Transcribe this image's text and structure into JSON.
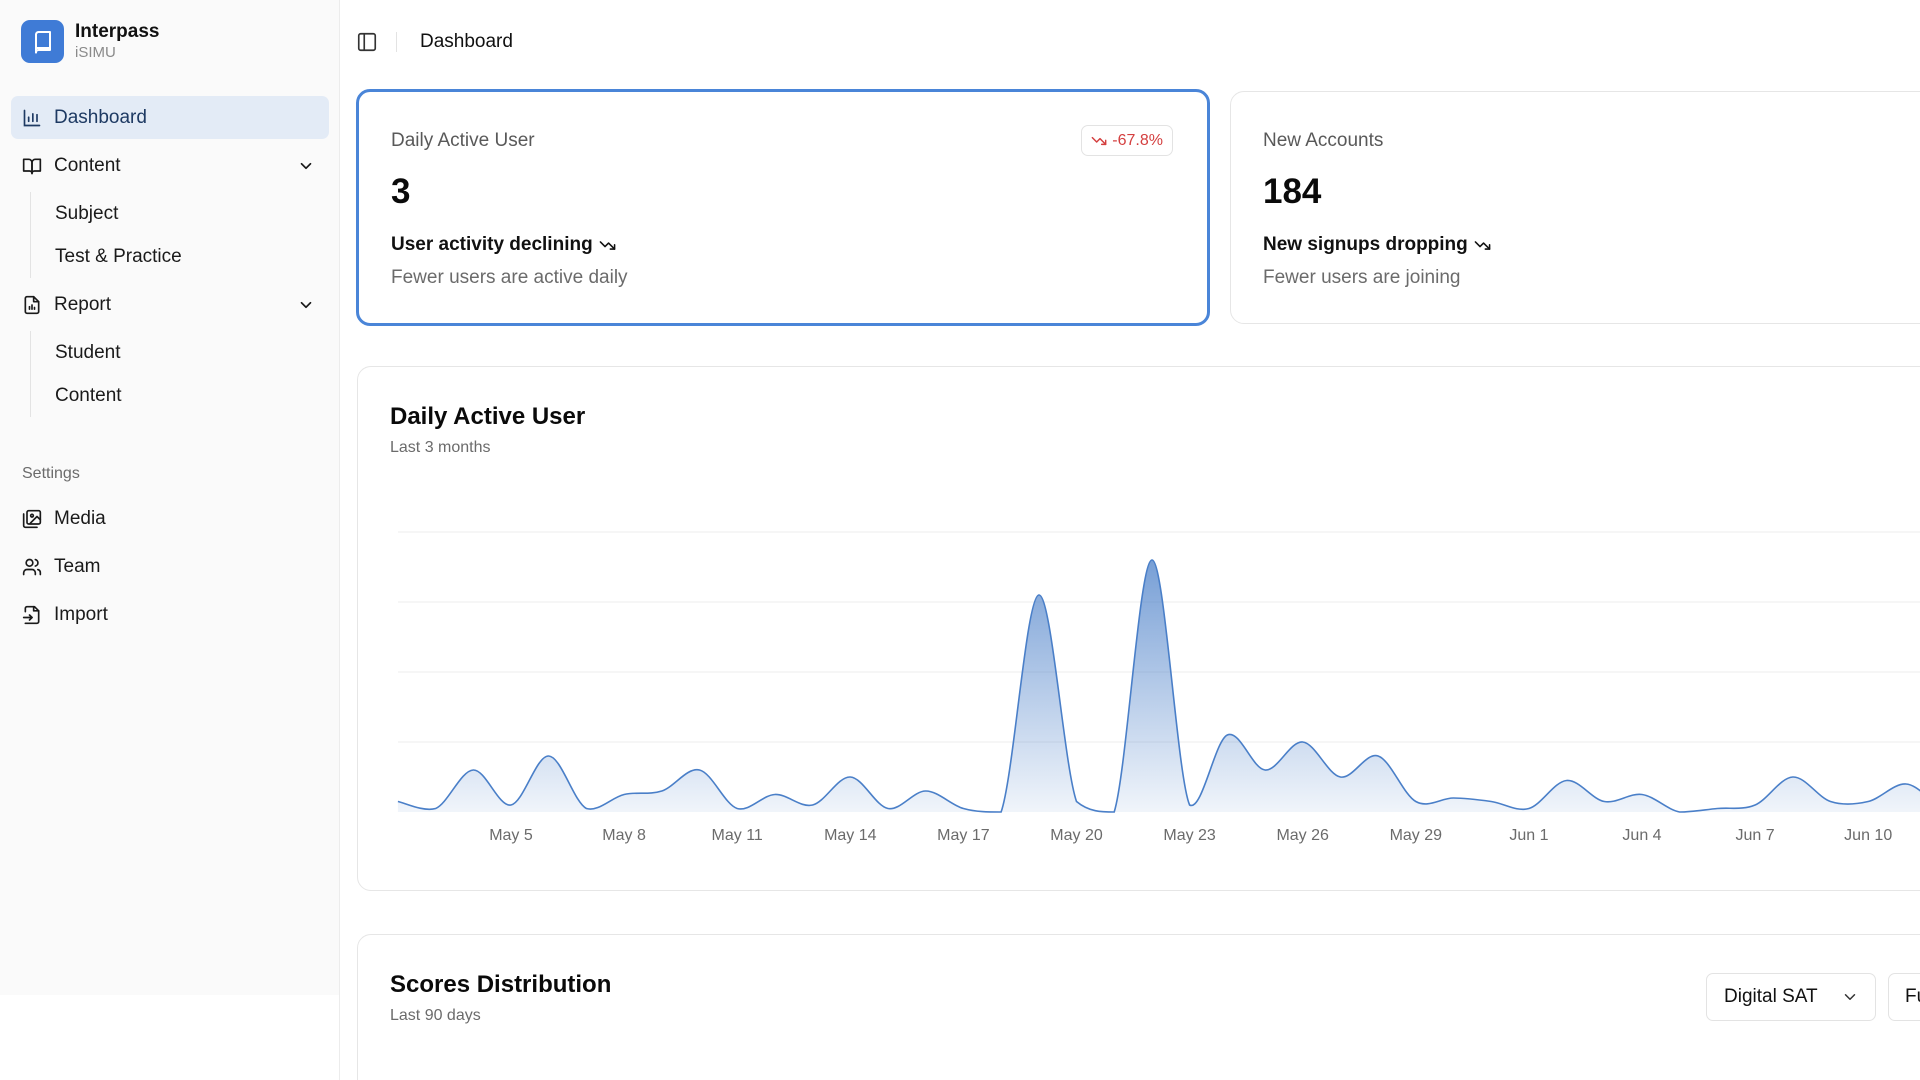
{
  "brand": {
    "name": "Interpass",
    "sub": "iSIMU"
  },
  "header": {
    "title": "Dashboard"
  },
  "nav": {
    "dashboard": "Dashboard",
    "content": "Content",
    "content_items": [
      "Subject",
      "Test & Practice"
    ],
    "report": "Report",
    "report_items": [
      "Student",
      "Content"
    ],
    "settings_label": "Settings",
    "media": "Media",
    "team": "Team",
    "import": "Import"
  },
  "kpis": [
    {
      "label": "Daily Active User",
      "value": "3",
      "badge": "-67.8%",
      "trend": "User activity declining",
      "note": "Fewer users are active daily"
    },
    {
      "label": "New Accounts",
      "value": "184",
      "trend": "New signups dropping",
      "note": "Fewer users are joining"
    }
  ],
  "chart_card": {
    "title": "Daily Active User",
    "subtitle": "Last 3 months"
  },
  "chart_data": {
    "type": "area",
    "title": "Daily Active User",
    "subtitle": "Last 3 months",
    "x_ticks": [
      "May 5",
      "May 8",
      "May 11",
      "May 14",
      "May 17",
      "May 20",
      "May 23",
      "May 26",
      "May 29",
      "Jun 1",
      "Jun 4",
      "Jun 7",
      "Jun 10"
    ],
    "x_start_day_offset": -3,
    "series": [
      {
        "values": [
          3,
          1,
          12,
          2,
          16,
          1,
          5,
          6,
          12,
          1,
          5,
          2,
          10,
          1,
          6,
          1,
          0,
          62,
          3,
          0,
          72,
          2,
          22,
          12,
          20,
          10,
          16,
          3,
          4,
          3,
          1,
          9,
          3,
          5,
          0,
          1,
          2,
          10,
          3,
          3,
          8,
          2,
          6,
          2,
          5,
          2,
          2,
          5,
          3,
          8,
          1,
          2,
          1,
          1,
          0,
          6,
          3,
          0,
          2,
          1,
          4,
          3,
          1,
          4,
          2,
          12,
          3,
          7,
          2,
          11
        ]
      }
    ],
    "ylim": [
      0,
      80
    ],
    "grid": true,
    "color": "#4a7fc8"
  },
  "dist_card": {
    "title": "Scores Distribution",
    "subtitle": "Last 90 days",
    "select_1": "Digital SAT",
    "select_2": "Fu"
  },
  "colors": {
    "accent": "#3f7bd6",
    "active_bg": "#e3ebf6",
    "negative": "#d43f3f"
  }
}
